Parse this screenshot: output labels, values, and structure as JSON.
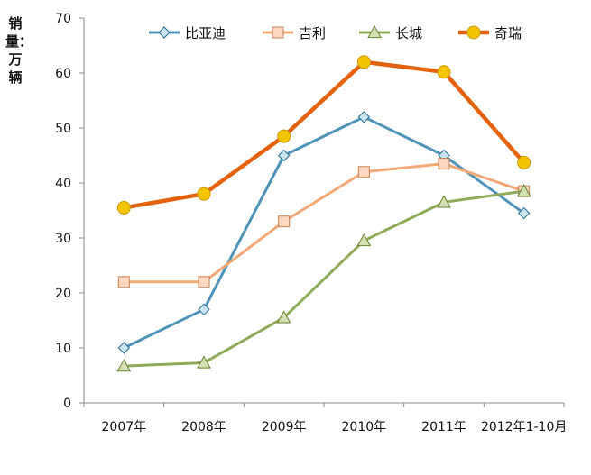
{
  "chart_data": {
    "type": "line",
    "ylabel": "销量：万辆",
    "categories": [
      "2007年",
      "2008年",
      "2009年",
      "2010年",
      "2011年",
      "2012年1-10月"
    ],
    "ylim": [
      0,
      70
    ],
    "yticks": [
      "0",
      "10",
      "20",
      "30",
      "40",
      "50",
      "60",
      "70"
    ],
    "grid": false,
    "legend_position": "top",
    "series": [
      {
        "name": "比亚迪",
        "color": "#4f93b8",
        "marker": "diamond",
        "values": [
          10,
          17,
          45,
          52,
          45,
          34.5
        ]
      },
      {
        "name": "吉利",
        "color": "#f2a877",
        "marker": "square",
        "values": [
          22,
          22,
          33,
          42,
          43.5,
          38.5
        ]
      },
      {
        "name": "长城",
        "color": "#8faa58",
        "marker": "triangle",
        "values": [
          6.7,
          7.3,
          15.5,
          29.5,
          36.5,
          38.5
        ]
      },
      {
        "name": "奇瑞",
        "color": "#e4610d",
        "marker": "circle",
        "values": [
          35.5,
          38,
          48.5,
          62,
          60.2,
          43.7
        ]
      }
    ]
  }
}
